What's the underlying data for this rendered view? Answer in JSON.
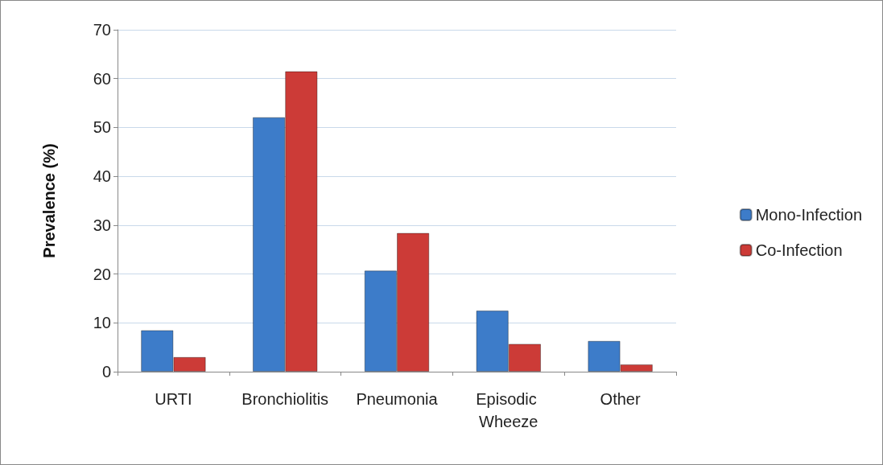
{
  "chart_data": {
    "type": "bar",
    "ylabel": "Prevalence (%)",
    "categories": [
      "URTI",
      "Bronchiolitis",
      "Pneumonia",
      "Episodic Wheeze",
      "Other"
    ],
    "series": [
      {
        "name": "Mono-Infection",
        "color": "#3d7cc9",
        "values": [
          8.5,
          52.1,
          20.7,
          12.5,
          6.3
        ]
      },
      {
        "name": "Co-Infection",
        "color": "#cc3b37",
        "values": [
          3.0,
          61.5,
          28.4,
          5.7,
          1.5
        ]
      }
    ],
    "ylim": [
      0,
      70
    ],
    "yticks": [
      0,
      10,
      20,
      30,
      40,
      50,
      60,
      70
    ],
    "grid": "y",
    "legend": "right"
  }
}
